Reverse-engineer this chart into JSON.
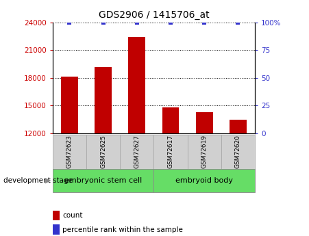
{
  "title": "GDS2906 / 1415706_at",
  "samples": [
    "GSM72623",
    "GSM72625",
    "GSM72627",
    "GSM72617",
    "GSM72619",
    "GSM72620"
  ],
  "counts": [
    18100,
    19200,
    22400,
    14800,
    14300,
    13500
  ],
  "ylim_left": [
    12000,
    24000
  ],
  "ylim_right": [
    0,
    100
  ],
  "yticks_left": [
    12000,
    15000,
    18000,
    21000,
    24000
  ],
  "yticks_right": [
    0,
    25,
    50,
    75,
    100
  ],
  "bar_color": "#c00000",
  "dot_color": "#3333cc",
  "group_labels": [
    "embryonic stem cell",
    "embryoid body"
  ],
  "group_color": "#66dd66",
  "stage_label": "development stage",
  "legend_count_label": "count",
  "legend_percentile_label": "percentile rank within the sample",
  "tick_label_color_left": "#cc0000",
  "tick_label_color_right": "#3333cc",
  "xlabel_box_color": "#d0d0d0",
  "xlabel_box_edge": "#aaaaaa",
  "bar_width": 0.5,
  "dot_size": 5
}
